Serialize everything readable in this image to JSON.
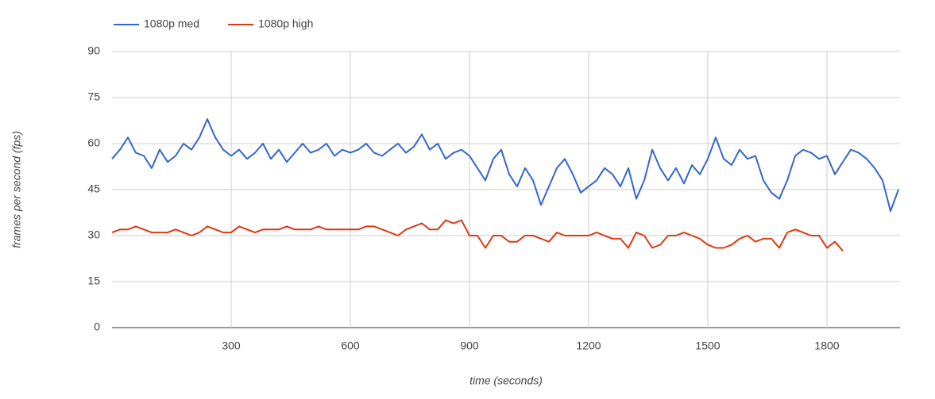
{
  "chart_data": {
    "type": "line",
    "x_label": "time (seconds)",
    "y_label": "frames per second (fps)",
    "x": [
      0,
      20,
      40,
      60,
      80,
      100,
      120,
      140,
      160,
      180,
      200,
      220,
      240,
      260,
      280,
      300,
      320,
      340,
      360,
      380,
      400,
      420,
      440,
      460,
      480,
      500,
      520,
      540,
      560,
      580,
      600,
      620,
      640,
      660,
      680,
      700,
      720,
      740,
      760,
      780,
      800,
      820,
      840,
      860,
      880,
      900,
      920,
      940,
      960,
      980,
      1000,
      1020,
      1040,
      1060,
      1080,
      1100,
      1120,
      1140,
      1160,
      1180,
      1200,
      1220,
      1240,
      1260,
      1280,
      1300,
      1320,
      1340,
      1360,
      1380,
      1400,
      1420,
      1440,
      1460,
      1480,
      1500,
      1520,
      1540,
      1560,
      1580,
      1600,
      1620,
      1640,
      1660,
      1680,
      1700,
      1720,
      1740,
      1760,
      1780,
      1800,
      1820,
      1840,
      1860,
      1880,
      1900,
      1920,
      1940,
      1960,
      1980
    ],
    "series": [
      {
        "name": "1080p med",
        "color": "#3366cc",
        "values": [
          55,
          58,
          62,
          57,
          56,
          52,
          58,
          54,
          56,
          60,
          58,
          62,
          68,
          62,
          58,
          56,
          58,
          55,
          57,
          60,
          55,
          58,
          54,
          57,
          60,
          57,
          58,
          60,
          56,
          58,
          57,
          58,
          60,
          57,
          56,
          58,
          60,
          57,
          59,
          63,
          58,
          60,
          55,
          57,
          58,
          56,
          52,
          48,
          55,
          58,
          50,
          46,
          52,
          48,
          40,
          46,
          52,
          55,
          50,
          44,
          46,
          48,
          52,
          50,
          46,
          52,
          42,
          48,
          58,
          52,
          48,
          52,
          47,
          53,
          50,
          55,
          62,
          55,
          53,
          58,
          55,
          56,
          48,
          44,
          42,
          48,
          56,
          58,
          57,
          55,
          56,
          50,
          54,
          58,
          57,
          55,
          52,
          48,
          38,
          45
        ]
      },
      {
        "name": "1080p high",
        "color": "#dc3912",
        "values": [
          31,
          32,
          32,
          33,
          32,
          31,
          31,
          31,
          32,
          31,
          30,
          31,
          33,
          32,
          31,
          31,
          33,
          32,
          31,
          32,
          32,
          32,
          33,
          32,
          32,
          32,
          33,
          32,
          32,
          32,
          32,
          32,
          33,
          33,
          32,
          31,
          30,
          32,
          33,
          34,
          32,
          32,
          35,
          34,
          35,
          30,
          30,
          26,
          30,
          30,
          28,
          28,
          30,
          30,
          29,
          28,
          31,
          30,
          30,
          30,
          30,
          31,
          30,
          29,
          29,
          26,
          31,
          30,
          26,
          27,
          30,
          30,
          31,
          30,
          29,
          27,
          26,
          26,
          27,
          29,
          30,
          28,
          29,
          29,
          26,
          31,
          32,
          31,
          30,
          30,
          26,
          28,
          25,
          null,
          null,
          null,
          null,
          null,
          null,
          null
        ]
      }
    ],
    "xlim": [
      0,
      1984
    ],
    "xticks": [
      300,
      600,
      900,
      1200,
      1500,
      1800
    ],
    "ylim": [
      0,
      90
    ],
    "yticks": [
      0,
      15,
      30,
      45,
      60,
      75,
      90
    ],
    "grid": true,
    "legend": "top"
  }
}
